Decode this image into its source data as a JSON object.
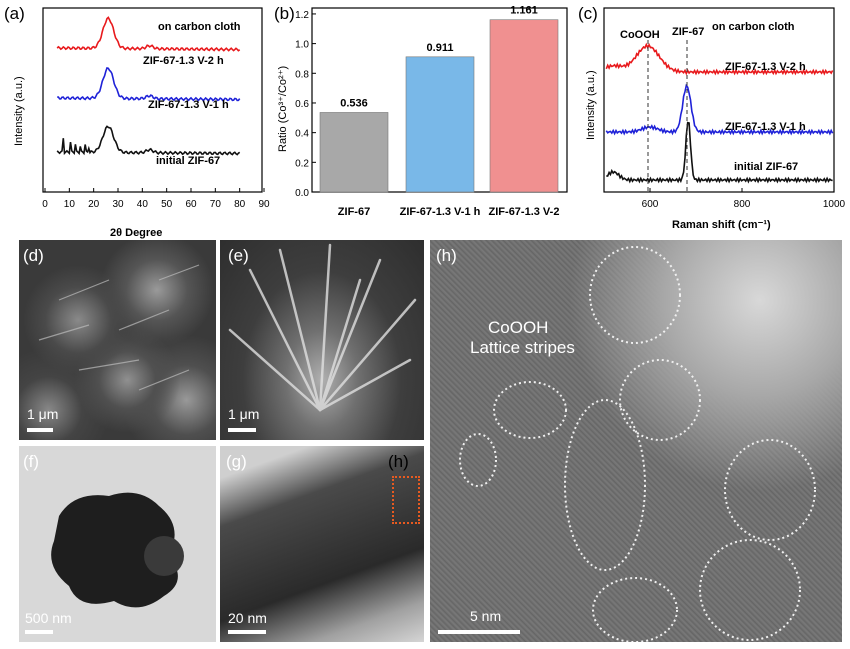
{
  "panels": {
    "a": {
      "label": "(a)",
      "title": "on carbon cloth",
      "xlabel": "2θ Degree",
      "ylabel": "Intensity (a.u.)",
      "xticks": [
        "0",
        "10",
        "20",
        "30",
        "40",
        "50",
        "60",
        "70",
        "80",
        "90"
      ],
      "series": [
        {
          "name": "ZIF-67-1.3 V-2 h",
          "color": "#e8191c"
        },
        {
          "name": "ZIF-67-1.3 V-1 h",
          "color": "#1f22d8"
        },
        {
          "name": "initial ZIF-67",
          "color": "#111111"
        }
      ]
    },
    "b": {
      "label": "(b)",
      "ylabel": "Ratio (Co³⁺/Co²⁺)",
      "yticks": [
        "0.0",
        "0.2",
        "0.4",
        "0.6",
        "0.8",
        "1.0",
        "1.2"
      ]
    },
    "c": {
      "label": "(c)",
      "title": "on carbon cloth",
      "xlabel": "Raman shift (cm⁻¹)",
      "ylabel": "Intensity (a.u.)",
      "xticks": [
        "600",
        "800",
        "1000"
      ],
      "peak_labels": [
        "CoOOH",
        "ZIF-67"
      ],
      "series": [
        {
          "name": "ZIF-67-1.3 V-2 h",
          "color": "#e8191c"
        },
        {
          "name": "ZIF-67-1.3 V-1 h",
          "color": "#1f22d8"
        },
        {
          "name": "initial ZIF-67",
          "color": "#111111"
        }
      ]
    },
    "d": {
      "label": "(d)",
      "scale": "1 μm"
    },
    "e": {
      "label": "(e)",
      "scale": "1 μm"
    },
    "f": {
      "label": "(f)",
      "scale": "500 nm"
    },
    "g": {
      "label": "(g)",
      "scale": "20 nm",
      "inset_label": "(h)"
    },
    "h": {
      "label": "(h)",
      "scale": "5 nm",
      "annotation_line1": "CoOOH",
      "annotation_line2": "Lattice stripes"
    }
  },
  "chart_data": [
    {
      "type": "bar",
      "title": "",
      "categories": [
        "ZIF-67",
        "ZIF-67-1.3 V-1 h",
        "ZIF-67-1.3 V-2"
      ],
      "values": [
        0.536,
        0.911,
        1.161
      ],
      "value_labels": [
        "0.536",
        "0.911",
        "1.161"
      ],
      "colors": [
        "#a8a8a8",
        "#79b8e8",
        "#f09090"
      ],
      "ylabel": "Ratio (Co³⁺/Co²⁺)",
      "ylim": [
        0,
        1.2
      ]
    },
    {
      "type": "line",
      "title": "on carbon cloth",
      "xlabel": "2θ Degree",
      "ylabel": "Intensity (a.u.)",
      "xlim": [
        0,
        90
      ],
      "series": [
        {
          "name": "ZIF-67-1.3 V-2 h",
          "peaks_x": [
            26,
            43
          ]
        },
        {
          "name": "ZIF-67-1.3 V-1 h",
          "peaks_x": [
            26,
            43
          ]
        },
        {
          "name": "initial ZIF-67",
          "peaks_x": [
            7.4,
            10.4,
            12.7,
            14.7,
            16.4,
            18,
            26,
            43
          ]
        }
      ]
    },
    {
      "type": "line",
      "title": "on carbon cloth",
      "xlabel": "Raman shift (cm⁻¹)",
      "ylabel": "Intensity (a.u.)",
      "xlim": [
        500,
        1000
      ],
      "series": [
        {
          "name": "ZIF-67-1.3 V-2 h",
          "peaks_x": [
            595
          ]
        },
        {
          "name": "ZIF-67-1.3 V-1 h",
          "peaks_x": [
            680
          ]
        },
        {
          "name": "initial ZIF-67",
          "peaks_x": [
            680
          ]
        }
      ]
    }
  ]
}
